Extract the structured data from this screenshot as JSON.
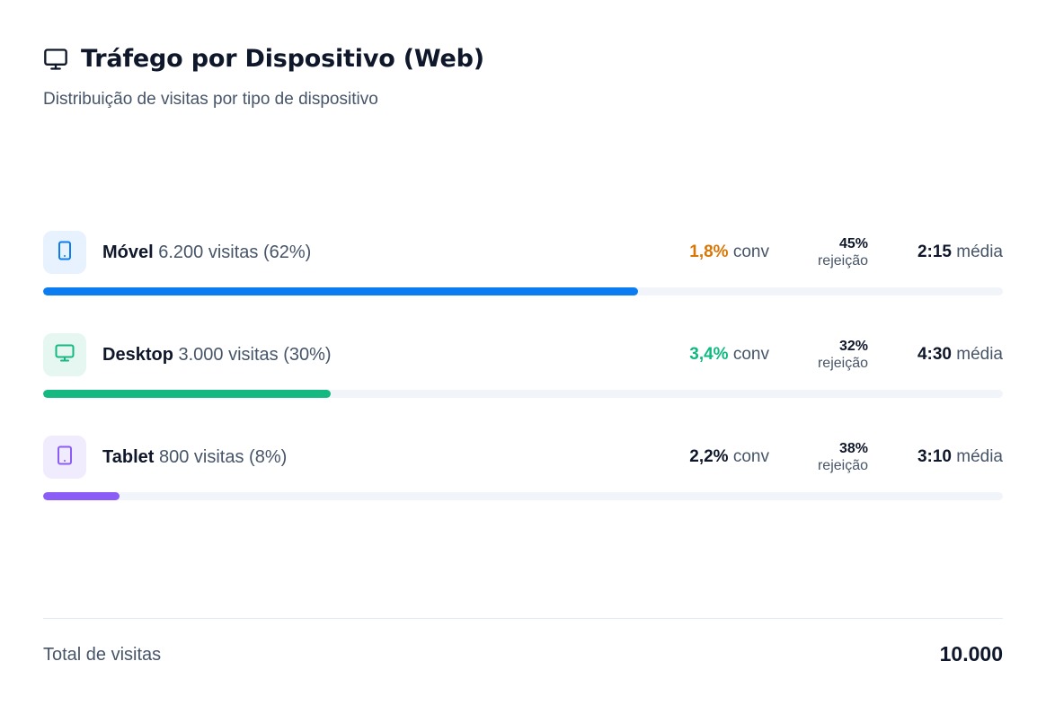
{
  "header": {
    "title": "Tráfego por Dispositivo (Web)",
    "subtitle": "Distribuição de visitas por tipo de dispositivo",
    "icon": "monitor-icon"
  },
  "devices": [
    {
      "name": "Móvel",
      "visits_text": "6.200 visitas (62%)",
      "share": 0.62,
      "conv_value": "1,8%",
      "conv_label": "conv",
      "conv_color": "#d97706",
      "bounce_value": "45%",
      "bounce_label": "rejeição",
      "avg_value": "2:15",
      "avg_label": "média",
      "icon": "smartphone-icon",
      "color": "#0b7df0",
      "icon_bg": "#e8f2fe"
    },
    {
      "name": "Desktop",
      "visits_text": "3.000 visitas (30%)",
      "share": 0.3,
      "conv_value": "3,4%",
      "conv_label": "conv",
      "conv_color": "#10b981",
      "bounce_value": "32%",
      "bounce_label": "rejeição",
      "avg_value": "4:30",
      "avg_label": "média",
      "icon": "monitor-icon",
      "color": "#14b981",
      "icon_bg": "#e5f7f0"
    },
    {
      "name": "Tablet",
      "visits_text": "800 visitas (8%)",
      "share": 0.08,
      "conv_value": "2,2%",
      "conv_label": "conv",
      "conv_color": "#0f172a",
      "bounce_value": "38%",
      "bounce_label": "rejeição",
      "avg_value": "3:10",
      "avg_label": "média",
      "icon": "tablet-icon",
      "color": "#8b5cf6",
      "icon_bg": "#f1ebfe"
    }
  ],
  "footer": {
    "label": "Total de visitas",
    "value": "10.000"
  }
}
